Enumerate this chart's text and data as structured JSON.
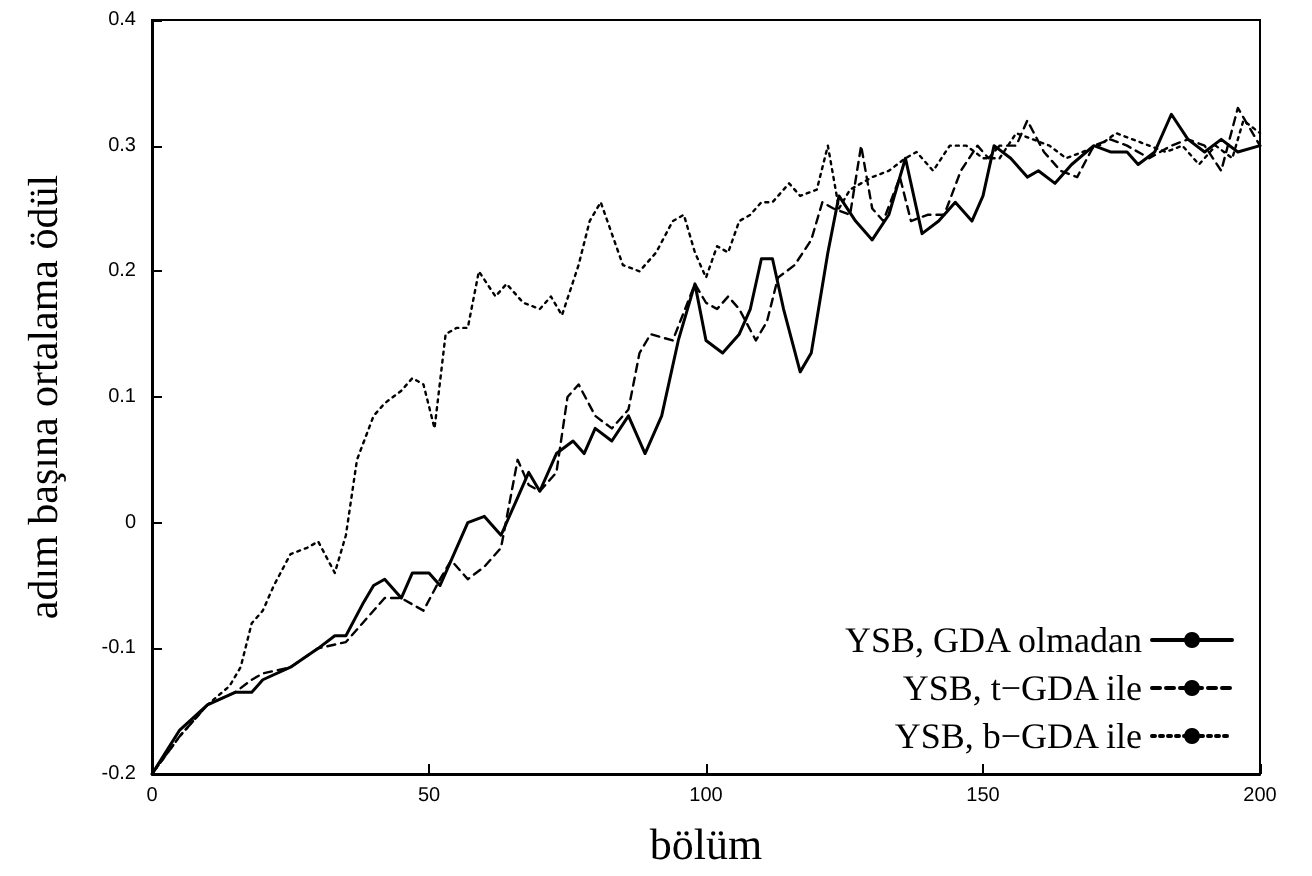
{
  "chart_data": {
    "type": "line",
    "xlabel": "bölüm",
    "ylabel": "adım başına ortalama ödül",
    "xlim": [
      0,
      200
    ],
    "xticks": [
      0,
      50,
      100,
      150,
      200
    ],
    "ylim": [
      -0.2,
      0.4
    ],
    "yticks": [
      -0.2,
      -0.1,
      0,
      0.1,
      0.2,
      0.3,
      0.4
    ],
    "grid": false,
    "legend": "bottom right",
    "marker": "none",
    "series": [
      {
        "name": "YSB, GDA olmadan",
        "color": "#000000",
        "line_style": "solid",
        "x": [
          0,
          5,
          10,
          15,
          18,
          20,
          25,
          30,
          33,
          35,
          38,
          40,
          42,
          45,
          47,
          50,
          52,
          54,
          57,
          60,
          63,
          66,
          68,
          70,
          73,
          76,
          78,
          80,
          83,
          86,
          89,
          92,
          95,
          98,
          100,
          103,
          106,
          108,
          110,
          112,
          114,
          117,
          119,
          122,
          124,
          127,
          130,
          133,
          136,
          139,
          142,
          145,
          148,
          150,
          152,
          155,
          158,
          160,
          163,
          166,
          170,
          173,
          176,
          178,
          181,
          184,
          187,
          190,
          193,
          196,
          200
        ],
        "values": [
          -0.2,
          -0.165,
          -0.145,
          -0.135,
          -0.135,
          -0.125,
          -0.115,
          -0.1,
          -0.09,
          -0.09,
          -0.065,
          -0.05,
          -0.045,
          -0.06,
          -0.04,
          -0.04,
          -0.05,
          -0.03,
          0.0,
          0.005,
          -0.01,
          0.02,
          0.04,
          0.025,
          0.055,
          0.065,
          0.055,
          0.075,
          0.065,
          0.085,
          0.055,
          0.085,
          0.145,
          0.19,
          0.145,
          0.135,
          0.15,
          0.17,
          0.21,
          0.21,
          0.17,
          0.12,
          0.135,
          0.215,
          0.26,
          0.24,
          0.225,
          0.245,
          0.29,
          0.23,
          0.24,
          0.255,
          0.24,
          0.26,
          0.3,
          0.29,
          0.275,
          0.28,
          0.27,
          0.285,
          0.3,
          0.295,
          0.295,
          0.285,
          0.295,
          0.325,
          0.305,
          0.295,
          0.305,
          0.295,
          0.3
        ]
      },
      {
        "name": "YSB, t−GDA ile",
        "color": "#000000",
        "line_style": "dashed",
        "x": [
          0,
          5,
          10,
          15,
          18,
          20,
          25,
          30,
          35,
          38,
          42,
          45,
          49,
          52,
          54,
          57,
          60,
          63,
          66,
          68,
          70,
          73,
          75,
          77,
          80,
          83,
          86,
          88,
          90,
          94,
          98,
          100,
          102,
          104,
          106,
          109,
          111,
          113,
          116,
          119,
          121,
          123,
          126,
          128,
          130,
          132,
          135,
          137,
          140,
          143,
          146,
          149,
          151,
          153,
          156,
          158,
          161,
          164,
          167,
          170,
          173,
          176,
          180,
          184,
          187,
          190,
          193,
          196,
          200
        ],
        "values": [
          -0.2,
          -0.17,
          -0.145,
          -0.135,
          -0.125,
          -0.12,
          -0.115,
          -0.1,
          -0.095,
          -0.08,
          -0.06,
          -0.06,
          -0.07,
          -0.045,
          -0.03,
          -0.045,
          -0.035,
          -0.02,
          0.05,
          0.03,
          0.025,
          0.04,
          0.1,
          0.11,
          0.085,
          0.075,
          0.09,
          0.135,
          0.15,
          0.145,
          0.19,
          0.175,
          0.17,
          0.18,
          0.17,
          0.145,
          0.16,
          0.195,
          0.205,
          0.225,
          0.255,
          0.25,
          0.245,
          0.3,
          0.25,
          0.24,
          0.275,
          0.24,
          0.245,
          0.245,
          0.28,
          0.3,
          0.29,
          0.3,
          0.3,
          0.32,
          0.295,
          0.28,
          0.275,
          0.3,
          0.305,
          0.3,
          0.29,
          0.3,
          0.305,
          0.3,
          0.28,
          0.33,
          0.3
        ]
      },
      {
        "name": "YSB, b−GDA ile",
        "color": "#000000",
        "line_style": "dotted",
        "x": [
          0,
          5,
          10,
          14,
          16,
          18,
          20,
          22,
          25,
          28,
          30,
          33,
          35,
          37,
          40,
          42,
          45,
          47,
          49,
          51,
          53,
          55,
          57,
          59,
          62,
          64,
          67,
          70,
          72,
          74,
          77,
          79,
          81,
          83,
          85,
          88,
          91,
          94,
          96,
          98,
          100,
          102,
          104,
          106,
          108,
          110,
          112,
          115,
          117,
          120,
          122,
          124,
          126,
          130,
          133,
          136,
          138,
          141,
          144,
          147,
          150,
          153,
          156,
          159,
          162,
          165,
          168,
          171,
          174,
          177,
          180,
          183,
          186,
          189,
          192,
          195,
          197,
          200
        ],
        "values": [
          -0.2,
          -0.17,
          -0.145,
          -0.13,
          -0.115,
          -0.08,
          -0.07,
          -0.05,
          -0.025,
          -0.02,
          -0.015,
          -0.04,
          -0.01,
          0.05,
          0.085,
          0.095,
          0.105,
          0.115,
          0.11,
          0.075,
          0.15,
          0.155,
          0.155,
          0.2,
          0.18,
          0.19,
          0.175,
          0.17,
          0.18,
          0.165,
          0.205,
          0.24,
          0.255,
          0.23,
          0.205,
          0.2,
          0.215,
          0.24,
          0.245,
          0.215,
          0.195,
          0.22,
          0.215,
          0.24,
          0.245,
          0.255,
          0.255,
          0.27,
          0.26,
          0.265,
          0.3,
          0.25,
          0.265,
          0.275,
          0.28,
          0.29,
          0.295,
          0.28,
          0.3,
          0.3,
          0.29,
          0.29,
          0.31,
          0.305,
          0.3,
          0.29,
          0.295,
          0.3,
          0.31,
          0.305,
          0.3,
          0.295,
          0.3,
          0.285,
          0.3,
          0.29,
          0.32,
          0.31
        ]
      }
    ]
  }
}
